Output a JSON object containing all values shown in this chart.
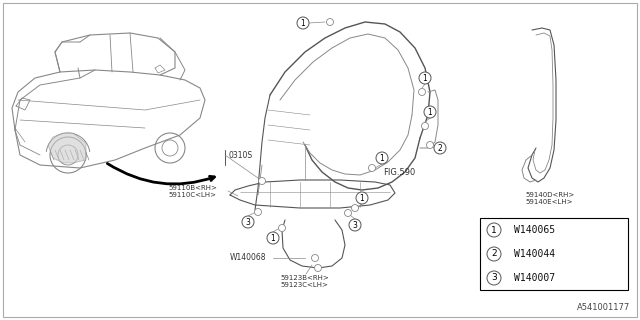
{
  "bg_color": "#ffffff",
  "diagram_number": "A541001177",
  "fig_label": "FIG.590",
  "line_color": "#888888",
  "dark_line": "#555555",
  "fasteners": [
    {
      "num": "1",
      "part": "W140065"
    },
    {
      "num": "2",
      "part": "W140044"
    },
    {
      "num": "3",
      "part": "W140007"
    }
  ]
}
